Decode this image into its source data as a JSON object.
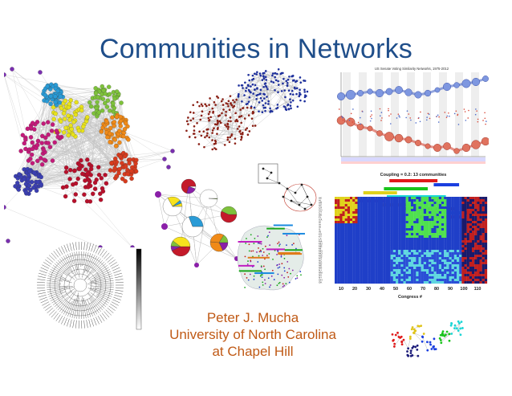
{
  "slide": {
    "title": "Communities in Networks",
    "author": {
      "name": "Peter J. Mucha",
      "affiliation_line1": "University of North Carolina",
      "affiliation_line2": "at Chapel Hill"
    }
  },
  "figures": {
    "senate_chart": {
      "title": "US Senate Voting Similarity Networks, 1975-2012"
    },
    "coupling_heatmap": {
      "title": "Coupling = 0.2: 13 communities",
      "xlabel": "Congress #",
      "ticks": [
        "10",
        "20",
        "30",
        "40",
        "50",
        "60",
        "70",
        "80",
        "90",
        "100",
        "110"
      ]
    }
  },
  "colors": {
    "title": "#1f4e8a",
    "author": "#c05a16"
  }
}
